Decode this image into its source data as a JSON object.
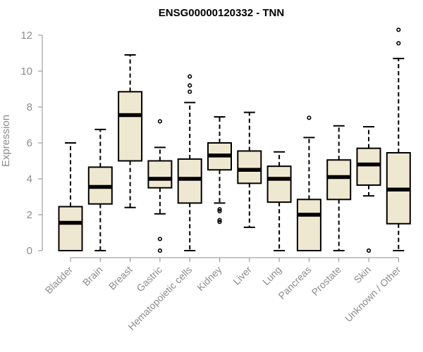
{
  "chart_data": {
    "type": "boxplot",
    "title": "ENSG00000120332 - TNN",
    "xlabel": "",
    "ylabel": "Expression",
    "ylim": [
      0,
      12.5
    ],
    "yticks": [
      0,
      2,
      4,
      6,
      8,
      10,
      12
    ],
    "box_fill": "#efe8d0",
    "box_stroke": "#000000",
    "axis_color": "#8c8c8c",
    "categories": [
      "Bladder",
      "Brain",
      "Breast",
      "Gastric",
      "Hematopoietic cells",
      "Kidney",
      "Liver",
      "Lung",
      "Pancreas",
      "Prostate",
      "Skin",
      "Unknown / Other"
    ],
    "boxes": [
      {
        "label": "Bladder",
        "whisker_low": 0.0,
        "q1": 0.0,
        "median": 1.55,
        "q3": 2.45,
        "whisker_high": 6.0,
        "outliers": []
      },
      {
        "label": "Brain",
        "whisker_low": 0.0,
        "q1": 2.6,
        "median": 3.55,
        "q3": 4.65,
        "whisker_high": 6.75,
        "outliers": []
      },
      {
        "label": "Breast",
        "whisker_low": 2.4,
        "q1": 5.0,
        "median": 7.55,
        "q3": 8.85,
        "whisker_high": 10.9,
        "outliers": []
      },
      {
        "label": "Gastric",
        "whisker_low": 2.05,
        "q1": 3.5,
        "median": 4.0,
        "q3": 5.0,
        "whisker_high": 5.75,
        "outliers": [
          7.2,
          0.65,
          0.0
        ]
      },
      {
        "label": "Hematopoietic cells",
        "whisker_low": 0.0,
        "q1": 2.65,
        "median": 4.0,
        "q3": 5.1,
        "whisker_high": 8.25,
        "outliers": [
          9.7,
          9.2,
          8.85
        ]
      },
      {
        "label": "Kidney",
        "whisker_low": 2.65,
        "q1": 4.5,
        "median": 5.3,
        "q3": 6.0,
        "whisker_high": 7.45,
        "outliers": [
          2.3,
          2.2,
          1.7,
          1.6
        ]
      },
      {
        "label": "Liver",
        "whisker_low": 1.3,
        "q1": 3.75,
        "median": 4.5,
        "q3": 5.55,
        "whisker_high": 7.7,
        "outliers": []
      },
      {
        "label": "Lung",
        "whisker_low": 0.0,
        "q1": 2.7,
        "median": 4.0,
        "q3": 4.7,
        "whisker_high": 5.5,
        "outliers": []
      },
      {
        "label": "Pancreas",
        "whisker_low": 0.0,
        "q1": 0.0,
        "median": 2.0,
        "q3": 2.85,
        "whisker_high": 6.3,
        "outliers": [
          7.4
        ]
      },
      {
        "label": "Prostate",
        "whisker_low": 0.0,
        "q1": 2.85,
        "median": 4.1,
        "q3": 5.05,
        "whisker_high": 6.95,
        "outliers": []
      },
      {
        "label": "Skin",
        "whisker_low": 3.05,
        "q1": 3.65,
        "median": 4.8,
        "q3": 5.7,
        "whisker_high": 6.9,
        "outliers": [
          0.0
        ]
      },
      {
        "label": "Unknown / Other",
        "whisker_low": 0.0,
        "q1": 1.5,
        "median": 3.4,
        "q3": 5.45,
        "whisker_high": 10.7,
        "outliers": [
          12.3,
          11.55
        ]
      }
    ]
  }
}
